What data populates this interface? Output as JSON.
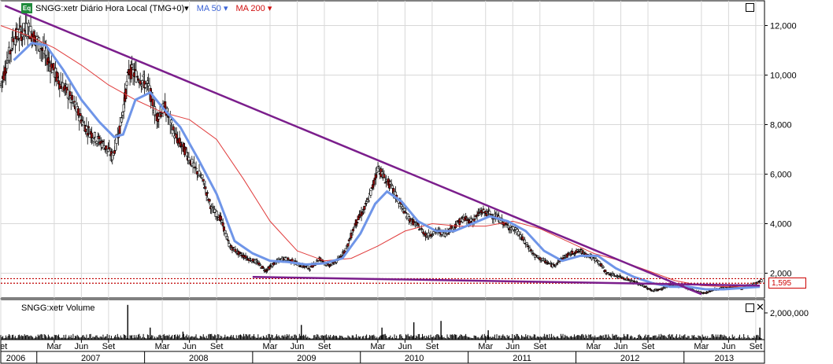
{
  "header": {
    "badge": "Eq",
    "title": "SNGG:xetr Diário Hora Local (TMG+0)▾",
    "ma50_label": "MA 50 ▾",
    "ma200_label": "MA 200 ▾"
  },
  "volume_panel": {
    "title": "SNGG:xetr Volume",
    "close_label": "✕"
  },
  "last_price_label": "1,595",
  "colors": {
    "candle": "#000000",
    "ma50": "#6f95e8",
    "ma200": "#e03c3c",
    "trendline": "#7b1e8c",
    "support": "#c00000",
    "grid": "#d8d8d8"
  },
  "chart_data": {
    "type": "candlestick",
    "title": "SNGG:xetr Diário Hora Local (TMG+0)",
    "y_ticks": [
      "12,000",
      "10,000",
      "8,000",
      "6,000",
      "4,000",
      "2,000"
    ],
    "y_tick_values": [
      12000,
      10000,
      8000,
      6000,
      4000,
      2000
    ],
    "ylim": [
      1000,
      13000
    ],
    "xlim": [
      "2006-09-01",
      "2013-09-20"
    ],
    "volume_tick": "2,000,000",
    "volume_tick_value": 2000000,
    "volume_ylim": [
      0,
      3000000
    ],
    "month_ticks": [
      {
        "label": "Set",
        "date": "2006-09-01"
      },
      {
        "label": "Mar",
        "date": "2007-03-01"
      },
      {
        "label": "Jun",
        "date": "2007-06-01"
      },
      {
        "label": "Set",
        "date": "2007-09-01"
      },
      {
        "label": "Mar",
        "date": "2008-03-01"
      },
      {
        "label": "Jun",
        "date": "2008-06-01"
      },
      {
        "label": "Set",
        "date": "2008-09-01"
      },
      {
        "label": "Mar",
        "date": "2009-03-01"
      },
      {
        "label": "Jun",
        "date": "2009-06-01"
      },
      {
        "label": "Set",
        "date": "2009-09-01"
      },
      {
        "label": "Mar",
        "date": "2010-03-01"
      },
      {
        "label": "Jun",
        "date": "2010-06-01"
      },
      {
        "label": "Set",
        "date": "2010-09-01"
      },
      {
        "label": "Mar",
        "date": "2011-03-01"
      },
      {
        "label": "Jun",
        "date": "2011-06-01"
      },
      {
        "label": "Set",
        "date": "2011-09-01"
      },
      {
        "label": "Mar",
        "date": "2012-03-01"
      },
      {
        "label": "Jun",
        "date": "2012-06-01"
      },
      {
        "label": "Set",
        "date": "2012-09-01"
      },
      {
        "label": "Mar",
        "date": "2013-03-01"
      },
      {
        "label": "Jun",
        "date": "2013-06-01"
      },
      {
        "label": "Set",
        "date": "2013-09-01"
      }
    ],
    "year_ticks": [
      {
        "label": "2006",
        "date": "2006-07-01"
      },
      {
        "label": "2007",
        "date": "2007-01-01"
      },
      {
        "label": "2008",
        "date": "2008-01-01"
      },
      {
        "label": "2009",
        "date": "2009-01-01"
      },
      {
        "label": "2010",
        "date": "2010-01-01"
      },
      {
        "label": "2011",
        "date": "2011-01-01"
      },
      {
        "label": "2012",
        "date": "2012-01-01"
      },
      {
        "label": "2013",
        "date": "2013-01-01"
      }
    ],
    "price_path": [
      [
        "2006-09-01",
        9600
      ],
      [
        "2006-10-15",
        11500
      ],
      [
        "2006-12-01",
        11900
      ],
      [
        "2007-01-01",
        11400
      ],
      [
        "2007-02-01",
        10800
      ],
      [
        "2007-03-15",
        9800
      ],
      [
        "2007-04-15",
        9300
      ],
      [
        "2007-05-15",
        8600
      ],
      [
        "2007-06-15",
        7900
      ],
      [
        "2007-07-15",
        7500
      ],
      [
        "2007-08-15",
        7200
      ],
      [
        "2007-09-15",
        6700
      ],
      [
        "2007-10-15",
        8200
      ],
      [
        "2007-11-10",
        10200
      ],
      [
        "2007-12-15",
        9900
      ],
      [
        "2008-01-15",
        9500
      ],
      [
        "2008-02-10",
        8300
      ],
      [
        "2008-03-10",
        8700
      ],
      [
        "2008-04-15",
        7500
      ],
      [
        "2008-05-15",
        7000
      ],
      [
        "2008-06-15",
        6300
      ],
      [
        "2008-07-15",
        5800
      ],
      [
        "2008-08-15",
        4600
      ],
      [
        "2008-09-15",
        4200
      ],
      [
        "2008-10-15",
        3100
      ],
      [
        "2008-11-15",
        2800
      ],
      [
        "2008-12-15",
        2600
      ],
      [
        "2009-01-15",
        2450
      ],
      [
        "2009-02-15",
        2100
      ],
      [
        "2009-03-15",
        2400
      ],
      [
        "2009-04-15",
        2600
      ],
      [
        "2009-05-15",
        2500
      ],
      [
        "2009-06-15",
        2300
      ],
      [
        "2009-07-15",
        2200
      ],
      [
        "2009-08-15",
        2600
      ],
      [
        "2009-09-15",
        2300
      ],
      [
        "2009-10-15",
        2500
      ],
      [
        "2009-11-15",
        3000
      ],
      [
        "2009-12-15",
        4000
      ],
      [
        "2010-01-15",
        4600
      ],
      [
        "2010-02-10",
        5400
      ],
      [
        "2010-03-01",
        6300
      ],
      [
        "2010-03-20",
        5900
      ],
      [
        "2010-04-15",
        5500
      ],
      [
        "2010-05-15",
        4800
      ],
      [
        "2010-06-15",
        4200
      ],
      [
        "2010-07-15",
        3900
      ],
      [
        "2010-08-15",
        3500
      ],
      [
        "2010-09-15",
        3700
      ],
      [
        "2010-10-15",
        3600
      ],
      [
        "2010-11-15",
        3900
      ],
      [
        "2010-12-15",
        4200
      ],
      [
        "2011-01-15",
        4100
      ],
      [
        "2011-02-15",
        4500
      ],
      [
        "2011-03-15",
        4400
      ],
      [
        "2011-04-15",
        4200
      ],
      [
        "2011-05-15",
        3900
      ],
      [
        "2011-06-15",
        3700
      ],
      [
        "2011-07-15",
        3200
      ],
      [
        "2011-08-15",
        2700
      ],
      [
        "2011-09-15",
        2500
      ],
      [
        "2011-10-15",
        2300
      ],
      [
        "2011-11-15",
        2600
      ],
      [
        "2011-12-15",
        2800
      ],
      [
        "2012-01-15",
        2900
      ],
      [
        "2012-02-15",
        2700
      ],
      [
        "2012-03-15",
        2500
      ],
      [
        "2012-04-15",
        2000
      ],
      [
        "2012-05-15",
        1900
      ],
      [
        "2012-06-15",
        1800
      ],
      [
        "2012-07-15",
        1650
      ],
      [
        "2012-08-15",
        1500
      ],
      [
        "2012-09-15",
        1300
      ],
      [
        "2012-10-15",
        1350
      ],
      [
        "2012-11-15",
        1550
      ],
      [
        "2012-12-15",
        1500
      ],
      [
        "2013-01-15",
        1400
      ],
      [
        "2013-02-15",
        1250
      ],
      [
        "2013-03-15",
        1200
      ],
      [
        "2013-04-15",
        1350
      ],
      [
        "2013-05-15",
        1400
      ],
      [
        "2013-06-15",
        1450
      ],
      [
        "2013-07-15",
        1400
      ],
      [
        "2013-08-15",
        1500
      ],
      [
        "2013-09-20",
        1700
      ]
    ],
    "ma50_path": [
      [
        "2006-10-15",
        10600
      ],
      [
        "2006-12-15",
        11300
      ],
      [
        "2007-02-01",
        11200
      ],
      [
        "2007-04-01",
        10200
      ],
      [
        "2007-06-01",
        9000
      ],
      [
        "2007-08-01",
        8100
      ],
      [
        "2007-09-20",
        7500
      ],
      [
        "2007-10-20",
        7600
      ],
      [
        "2007-12-01",
        9000
      ],
      [
        "2008-01-20",
        9300
      ],
      [
        "2008-03-01",
        8700
      ],
      [
        "2008-05-01",
        7900
      ],
      [
        "2008-07-01",
        6600
      ],
      [
        "2008-09-01",
        5200
      ],
      [
        "2008-11-01",
        3300
      ],
      [
        "2009-01-01",
        2800
      ],
      [
        "2009-03-01",
        2500
      ],
      [
        "2009-05-01",
        2450
      ],
      [
        "2009-07-01",
        2350
      ],
      [
        "2009-09-01",
        2400
      ],
      [
        "2009-11-01",
        2600
      ],
      [
        "2010-01-01",
        3600
      ],
      [
        "2010-02-20",
        4800
      ],
      [
        "2010-04-01",
        5300
      ],
      [
        "2010-05-20",
        4900
      ],
      [
        "2010-07-15",
        4100
      ],
      [
        "2010-09-15",
        3700
      ],
      [
        "2010-11-15",
        3700
      ],
      [
        "2011-01-15",
        4000
      ],
      [
        "2011-03-15",
        4300
      ],
      [
        "2011-05-15",
        4100
      ],
      [
        "2011-07-15",
        3700
      ],
      [
        "2011-09-15",
        2900
      ],
      [
        "2011-11-15",
        2500
      ],
      [
        "2012-01-15",
        2700
      ],
      [
        "2012-03-15",
        2700
      ],
      [
        "2012-05-15",
        2200
      ],
      [
        "2012-07-15",
        1850
      ],
      [
        "2012-09-15",
        1600
      ],
      [
        "2012-11-15",
        1450
      ],
      [
        "2013-01-15",
        1450
      ],
      [
        "2013-03-15",
        1350
      ],
      [
        "2013-05-15",
        1350
      ],
      [
        "2013-07-15",
        1400
      ],
      [
        "2013-09-15",
        1450
      ]
    ],
    "ma200_path": [
      [
        "2006-09-01",
        12000
      ],
      [
        "2006-12-01",
        11600
      ],
      [
        "2007-03-01",
        11100
      ],
      [
        "2007-06-01",
        10400
      ],
      [
        "2007-09-01",
        9600
      ],
      [
        "2007-12-01",
        9000
      ],
      [
        "2008-03-01",
        8500
      ],
      [
        "2008-06-01",
        8200
      ],
      [
        "2008-09-01",
        7400
      ],
      [
        "2008-12-01",
        5800
      ],
      [
        "2009-03-01",
        4100
      ],
      [
        "2009-06-01",
        2900
      ],
      [
        "2009-09-01",
        2500
      ],
      [
        "2009-12-01",
        2600
      ],
      [
        "2010-03-01",
        3100
      ],
      [
        "2010-06-01",
        3700
      ],
      [
        "2010-09-01",
        4000
      ],
      [
        "2010-12-01",
        3900
      ],
      [
        "2011-03-01",
        3900
      ],
      [
        "2011-06-01",
        4100
      ],
      [
        "2011-09-01",
        3800
      ],
      [
        "2011-12-01",
        3300
      ],
      [
        "2012-03-01",
        2800
      ],
      [
        "2012-06-01",
        2500
      ],
      [
        "2012-09-01",
        2100
      ],
      [
        "2012-12-01",
        1700
      ],
      [
        "2013-03-01",
        1500
      ],
      [
        "2013-06-01",
        1450
      ],
      [
        "2013-09-15",
        1450
      ]
    ],
    "trendlines": [
      {
        "from": [
          "2006-09-15",
          12800
        ],
        "to": [
          "2013-03-01",
          1150
        ]
      },
      {
        "from": [
          "2009-01-01",
          1850
        ],
        "to": [
          "2013-09-15",
          1500
        ]
      }
    ],
    "support_levels": [
      1595,
      1780
    ],
    "volume_spikes": [
      [
        "2007-11-05",
        2600000
      ],
      [
        "2008-01-20",
        900000
      ],
      [
        "2008-05-10",
        600000
      ],
      [
        "2009-06-15",
        1100000
      ],
      [
        "2010-03-15",
        900000
      ],
      [
        "2010-07-01",
        1300000
      ],
      [
        "2010-10-01",
        1400000
      ],
      [
        "2011-03-10",
        700000
      ],
      [
        "2013-09-15",
        900000
      ]
    ]
  }
}
